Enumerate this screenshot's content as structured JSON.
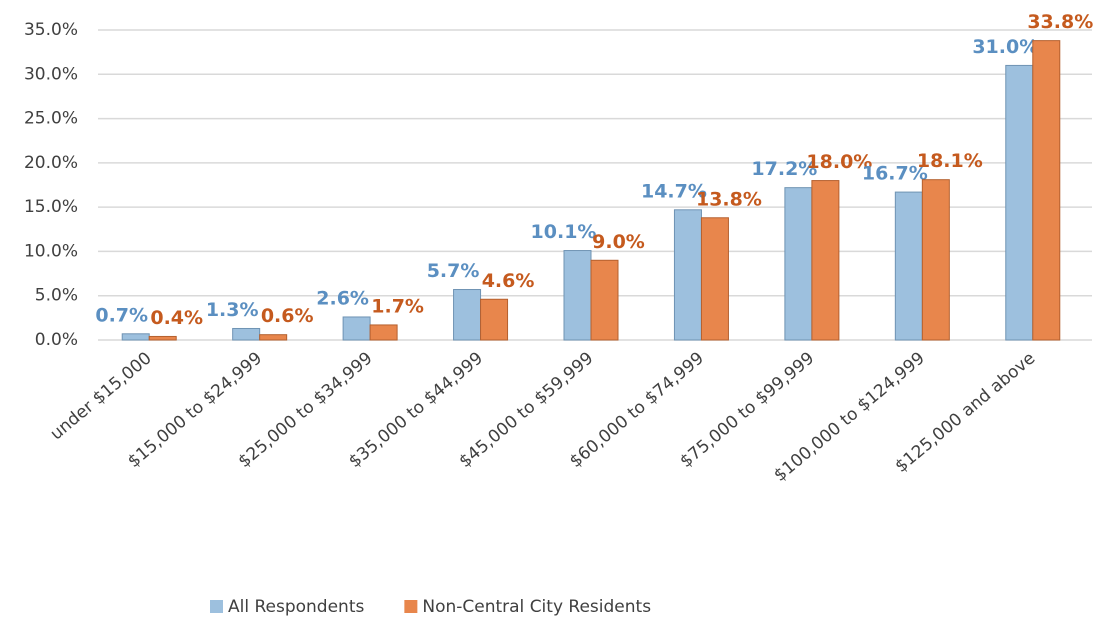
{
  "chart_data": {
    "type": "bar",
    "categories": [
      "under $15,000",
      "$15,000 to $24,999",
      "$25,000 to $34,999",
      "$35,000 to $44,999",
      "$45,000 to $59,999",
      "$60,000 to $74,999",
      "$75,000 to $99,999",
      "$100,000 to $124,999",
      "$125,000 and above"
    ],
    "series": [
      {
        "name": "All Respondents",
        "color": "#9dc0de",
        "label_color": "#5b8fc1",
        "values": [
          0.7,
          1.3,
          2.6,
          5.7,
          10.1,
          14.7,
          17.2,
          16.7,
          31.0
        ],
        "value_labels": [
          "0.7%",
          "1.3%",
          "2.6%",
          "5.7%",
          "10.1%",
          "14.7%",
          "17.2%",
          "16.7%",
          "31.0%"
        ]
      },
      {
        "name": "Non-Central City Residents",
        "color": "#e8864c",
        "label_color": "#c55a1e",
        "values": [
          0.4,
          0.6,
          1.7,
          4.6,
          9.0,
          13.8,
          18.0,
          18.1,
          33.8
        ],
        "value_labels": [
          "0.4%",
          "0.6%",
          "1.7%",
          "4.6%",
          "9.0%",
          "13.8%",
          "18.0%",
          "18.1%",
          "33.8%"
        ]
      }
    ],
    "ylim": [
      0,
      35
    ],
    "yticks": [
      {
        "value": 0,
        "label": "0.0%"
      },
      {
        "value": 5,
        "label": "5.0%"
      },
      {
        "value": 10,
        "label": "10.0%"
      },
      {
        "value": 15,
        "label": "15.0%"
      },
      {
        "value": 20,
        "label": "20.0%"
      },
      {
        "value": 25,
        "label": "25.0%"
      },
      {
        "value": 30,
        "label": "30.0%"
      },
      {
        "value": 35,
        "label": "35.0%"
      }
    ],
    "grid": true,
    "legend": "bottom"
  }
}
